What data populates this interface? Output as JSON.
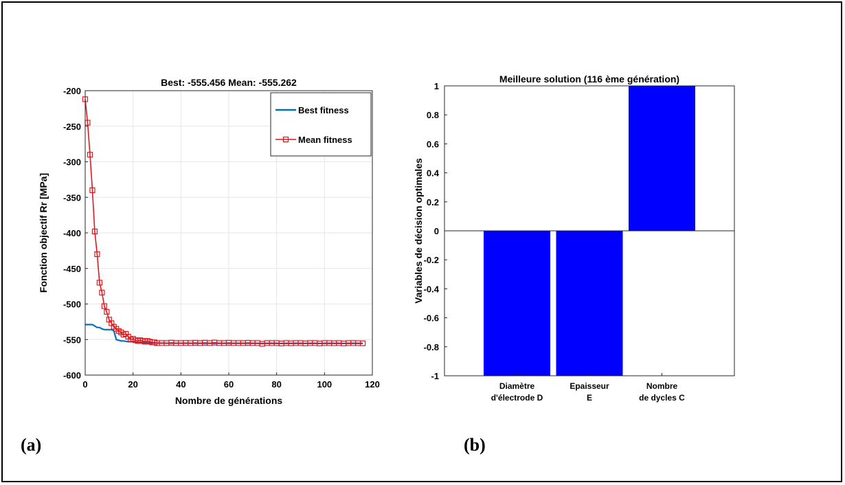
{
  "panels": {
    "a_label": "(a)",
    "b_label": "(b)"
  },
  "chart_data": [
    {
      "type": "line",
      "title": "Best: -555.456 Mean: -555.262",
      "xlabel": "Nombre de générations",
      "ylabel": "Fonction objectif Rr [MPa]",
      "xlim": [
        0,
        120
      ],
      "ylim": [
        -600,
        -200
      ],
      "xticks": [
        0,
        20,
        40,
        60,
        80,
        100,
        120
      ],
      "yticks": [
        -600,
        -550,
        -500,
        -450,
        -400,
        -350,
        -300,
        -250,
        -200
      ],
      "grid": true,
      "legend": "top-right",
      "series": [
        {
          "name": "Best fitness",
          "color": "#0072BD",
          "marker": "none",
          "x": [
            0,
            1,
            2,
            3,
            4,
            5,
            6,
            7,
            8,
            9,
            10,
            11,
            12,
            13,
            14,
            15,
            16,
            18,
            20,
            22,
            24,
            26,
            28,
            30,
            35,
            40,
            50,
            60,
            70,
            80,
            90,
            100,
            110,
            116
          ],
          "y": [
            -529,
            -529,
            -529,
            -529,
            -531,
            -533,
            -533,
            -535,
            -536,
            -536,
            -536,
            -536,
            -538,
            -550,
            -551,
            -552,
            -552,
            -553,
            -553,
            -554,
            -554,
            -554.5,
            -555,
            -555,
            -555.2,
            -555.3,
            -555.4,
            -555.4,
            -555.4,
            -555.45,
            -555.45,
            -555.46,
            -555.46,
            -555.456
          ]
        },
        {
          "name": "Mean fitness",
          "color": "#E3161B",
          "marker": "square",
          "x": [
            0,
            1,
            2,
            3,
            4,
            5,
            6,
            7,
            8,
            9,
            10,
            11,
            12,
            13,
            14,
            15,
            16,
            17,
            18,
            19,
            20,
            21,
            22,
            23,
            24,
            25,
            26,
            27,
            28,
            29,
            30,
            32,
            34,
            36,
            38,
            40,
            42,
            44,
            46,
            48,
            50,
            52,
            54,
            56,
            58,
            60,
            62,
            64,
            66,
            68,
            70,
            72,
            74,
            76,
            78,
            80,
            82,
            84,
            86,
            88,
            90,
            92,
            94,
            96,
            98,
            100,
            102,
            104,
            106,
            108,
            110,
            112,
            114,
            116
          ],
          "y": [
            -212,
            -245,
            -290,
            -340,
            -398,
            -430,
            -470,
            -484,
            -503,
            -511,
            -522,
            -527,
            -532,
            -535,
            -538,
            -540,
            -543,
            -542,
            -546,
            -550,
            -549,
            -551,
            -552,
            -551,
            -552,
            -553,
            -552,
            -553,
            -554,
            -554,
            -555,
            -555,
            -555,
            -554.5,
            -555,
            -555,
            -554.8,
            -555,
            -554.6,
            -555,
            -554.5,
            -555,
            -554.3,
            -555,
            -555,
            -554.6,
            -555,
            -555,
            -555,
            -554.7,
            -555,
            -555,
            -556,
            -555,
            -555,
            -555,
            -555.5,
            -555,
            -555.3,
            -555,
            -555,
            -555.4,
            -555,
            -555,
            -555.5,
            -555,
            -555,
            -555.2,
            -555,
            -555.5,
            -555,
            -555,
            -555.1,
            -555.262
          ]
        }
      ]
    },
    {
      "type": "bar",
      "title": "Meilleure solution (116 ème génération)",
      "xlabel": "",
      "ylabel": "Variables de décision optimales",
      "ylim": [
        -1,
        1
      ],
      "yticks": [
        -1,
        -0.8,
        -0.6,
        -0.4,
        -0.2,
        0,
        0.2,
        0.4,
        0.6,
        0.8,
        1
      ],
      "grid": false,
      "bar_color": "#0000FF",
      "categories": [
        [
          "Diamètre",
          "d'électrode D"
        ],
        [
          "Epaisseur",
          "E"
        ],
        [
          "Nombre",
          "de dycles C"
        ]
      ],
      "values": [
        -1,
        -1,
        1
      ]
    }
  ]
}
